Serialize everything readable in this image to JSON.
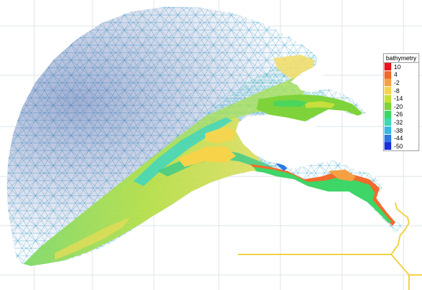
{
  "map": {
    "legend": {
      "title": "bathymetry",
      "entries": [
        {
          "label": "10",
          "color": "#e8141c"
        },
        {
          "label": "4",
          "color": "#f26a2b"
        },
        {
          "label": "-2",
          "color": "#f5a043"
        },
        {
          "label": "-8",
          "color": "#f7d34a"
        },
        {
          "label": "-14",
          "color": "#c7df3a"
        },
        {
          "label": "-20",
          "color": "#7fd33a"
        },
        {
          "label": "-26",
          "color": "#3dd667"
        },
        {
          "label": "-32",
          "color": "#3ed9b2"
        },
        {
          "label": "-38",
          "color": "#36b8e6"
        },
        {
          "label": "-44",
          "color": "#2c79e3"
        },
        {
          "label": "-50",
          "color": "#1a31d9"
        }
      ]
    },
    "colors": {
      "grid": "#dde3ea",
      "mesh_deep": "#2f4f9e",
      "mesh_mid": "#48b3d6",
      "mesh_shallow": "#6fd6c0",
      "land": "#ffffff",
      "boundary_line": "#f2d13e"
    }
  }
}
